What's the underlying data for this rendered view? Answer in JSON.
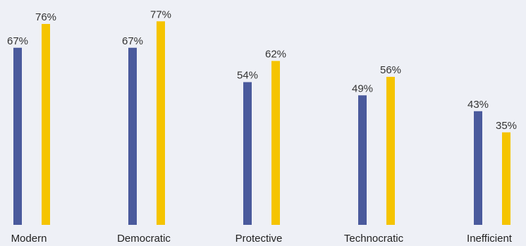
{
  "chart_data": {
    "type": "bar",
    "categories": [
      "Modern",
      "Democratic",
      "Protective",
      "Technocratic",
      "Inefficient"
    ],
    "series": [
      {
        "values": [
          67,
          67,
          54,
          49,
          43
        ],
        "labels": [
          "67%",
          "67%",
          "54%",
          "49%",
          "43%"
        ],
        "color": "#4a5a9c"
      },
      {
        "values": [
          76,
          77,
          62,
          56,
          35
        ],
        "labels": [
          "76%",
          "77%",
          "62%",
          "56%",
          "35%"
        ],
        "color": "#f5c400"
      }
    ],
    "ylim": [
      0,
      100
    ],
    "grid": false,
    "legend": "none"
  }
}
